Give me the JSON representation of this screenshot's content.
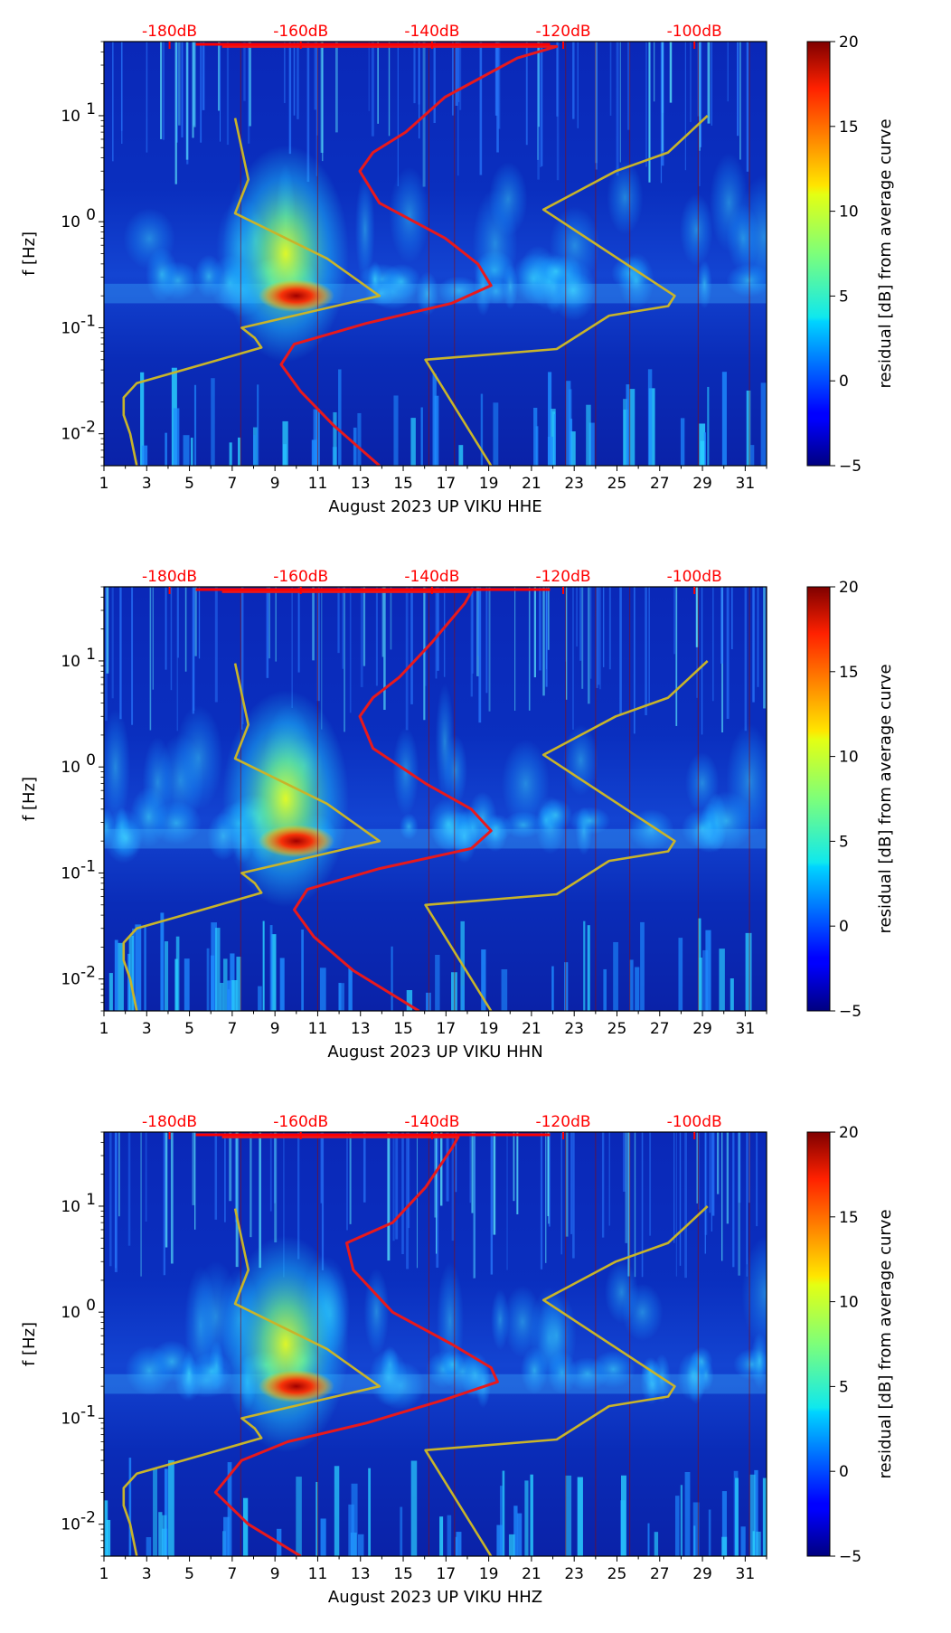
{
  "chart_data": [
    {
      "type": "heatmap",
      "channel": "HHE",
      "xlabel": "August 2023 UP VIKU  HHE",
      "ylabel": "f [Hz]",
      "x_ticks": [
        "1",
        "3",
        "5",
        "7",
        "9",
        "11",
        "13",
        "15",
        "17",
        "19",
        "21",
        "23",
        "25",
        "27",
        "29",
        "31"
      ],
      "xlim": [
        1,
        32
      ],
      "ylim": [
        0.005,
        50
      ],
      "y_ticks": [
        {
          "label": "10",
          "exp": "-2",
          "value": 0.01
        },
        {
          "label": "10",
          "exp": "-1",
          "value": 0.1
        },
        {
          "label": "10",
          "exp": "0",
          "value": 1
        },
        {
          "label": "10",
          "exp": "1",
          "value": 10
        }
      ],
      "top_axis_ticks": [
        "-180dB",
        "-160dB",
        "-140dB",
        "-120dB",
        "-100dB"
      ],
      "top_axis_range_db": [
        -190,
        -89
      ],
      "colorbar": {
        "label": "residual [dB] from average curve",
        "min": -5,
        "max": 20,
        "ticks": [
          "−5",
          "0",
          "5",
          "10",
          "15",
          "20"
        ]
      },
      "series": [
        {
          "name": "median PSD (dB)",
          "color": "#e8191c",
          "points": [
            [
              -148,
              0.005
            ],
            [
              -155,
              0.012
            ],
            [
              -160,
              0.025
            ],
            [
              -163,
              0.045
            ],
            [
              -161,
              0.07
            ],
            [
              -150,
              0.11
            ],
            [
              -137,
              0.17
            ],
            [
              -131,
              0.25
            ],
            [
              -133,
              0.4
            ],
            [
              -138,
              0.7
            ],
            [
              -148,
              1.5
            ],
            [
              -151,
              3
            ],
            [
              -149,
              4.5
            ],
            [
              -144,
              7
            ],
            [
              -138,
              15
            ],
            [
              -127,
              35
            ],
            [
              -121,
              45
            ],
            [
              -172,
              45
            ]
          ]
        },
        {
          "name": "NLNM (dB)",
          "color": "#c8b42a",
          "points": [
            [
              -185,
              0.005
            ],
            [
              -186,
              0.01
            ],
            [
              -187,
              0.015
            ],
            [
              -187,
              0.022
            ],
            [
              -185,
              0.03
            ],
            [
              -175,
              0.045
            ],
            [
              -166,
              0.065
            ],
            [
              -167,
              0.08
            ],
            [
              -169,
              0.1
            ],
            [
              -148,
              0.2
            ],
            [
              -156,
              0.45
            ],
            [
              -170,
              1.2
            ],
            [
              -168,
              2.5
            ],
            [
              -170,
              9.5
            ]
          ]
        },
        {
          "name": "NHNM (dB)",
          "color": "#c8b42a",
          "points": [
            [
              -131,
              0.005
            ],
            [
              -141,
              0.05
            ],
            [
              -121,
              0.063
            ],
            [
              -113,
              0.13
            ],
            [
              -104,
              0.16
            ],
            [
              -103,
              0.2
            ],
            [
              -123,
              1.3
            ],
            [
              -112,
              3
            ],
            [
              -104,
              4.5
            ],
            [
              -98,
              10
            ]
          ]
        }
      ]
    },
    {
      "type": "heatmap",
      "channel": "HHN",
      "xlabel": "August 2023 UP VIKU  HHN",
      "ylabel": "f [Hz]",
      "x_ticks": [
        "1",
        "3",
        "5",
        "7",
        "9",
        "11",
        "13",
        "15",
        "17",
        "19",
        "21",
        "23",
        "25",
        "27",
        "29",
        "31"
      ],
      "xlim": [
        1,
        32
      ],
      "ylim": [
        0.005,
        50
      ],
      "y_ticks": [
        {
          "label": "10",
          "exp": "-2",
          "value": 0.01
        },
        {
          "label": "10",
          "exp": "-1",
          "value": 0.1
        },
        {
          "label": "10",
          "exp": "0",
          "value": 1
        },
        {
          "label": "10",
          "exp": "1",
          "value": 10
        }
      ],
      "top_axis_ticks": [
        "-180dB",
        "-160dB",
        "-140dB",
        "-120dB",
        "-100dB"
      ],
      "top_axis_range_db": [
        -190,
        -89
      ],
      "colorbar": {
        "label": "residual [dB] from average curve",
        "min": -5,
        "max": 20,
        "ticks": [
          "−5",
          "0",
          "5",
          "10",
          "15",
          "20"
        ]
      },
      "series": [
        {
          "name": "median PSD (dB)",
          "color": "#e8191c",
          "points": [
            [
              -142,
              0.005
            ],
            [
              -152,
              0.012
            ],
            [
              -158,
              0.025
            ],
            [
              -161,
              0.045
            ],
            [
              -159,
              0.07
            ],
            [
              -148,
              0.11
            ],
            [
              -134,
              0.17
            ],
            [
              -131,
              0.25
            ],
            [
              -134,
              0.4
            ],
            [
              -141,
              0.7
            ],
            [
              -149,
              1.5
            ],
            [
              -151,
              3
            ],
            [
              -149,
              4.5
            ],
            [
              -145,
              7
            ],
            [
              -140,
              15
            ],
            [
              -135,
              35
            ],
            [
              -134,
              45
            ],
            [
              -172,
              45
            ]
          ]
        },
        {
          "name": "NLNM (dB)",
          "color": "#c8b42a",
          "points": [
            [
              -185,
              0.005
            ],
            [
              -186,
              0.01
            ],
            [
              -187,
              0.015
            ],
            [
              -187,
              0.022
            ],
            [
              -185,
              0.03
            ],
            [
              -175,
              0.045
            ],
            [
              -166,
              0.065
            ],
            [
              -167,
              0.08
            ],
            [
              -169,
              0.1
            ],
            [
              -148,
              0.2
            ],
            [
              -156,
              0.45
            ],
            [
              -170,
              1.2
            ],
            [
              -168,
              2.5
            ],
            [
              -170,
              9.5
            ]
          ]
        },
        {
          "name": "NHNM (dB)",
          "color": "#c8b42a",
          "points": [
            [
              -131,
              0.005
            ],
            [
              -141,
              0.05
            ],
            [
              -121,
              0.063
            ],
            [
              -113,
              0.13
            ],
            [
              -104,
              0.16
            ],
            [
              -103,
              0.2
            ],
            [
              -123,
              1.3
            ],
            [
              -112,
              3
            ],
            [
              -104,
              4.5
            ],
            [
              -98,
              10
            ]
          ]
        }
      ]
    },
    {
      "type": "heatmap",
      "channel": "HHZ",
      "xlabel": "August 2023 UP VIKU  HHZ",
      "ylabel": "f [Hz]",
      "x_ticks": [
        "1",
        "3",
        "5",
        "7",
        "9",
        "11",
        "13",
        "15",
        "17",
        "19",
        "21",
        "23",
        "25",
        "27",
        "29",
        "31"
      ],
      "xlim": [
        1,
        32
      ],
      "ylim": [
        0.005,
        50
      ],
      "y_ticks": [
        {
          "label": "10",
          "exp": "-2",
          "value": 0.01
        },
        {
          "label": "10",
          "exp": "-1",
          "value": 0.1
        },
        {
          "label": "10",
          "exp": "0",
          "value": 1
        },
        {
          "label": "10",
          "exp": "1",
          "value": 10
        }
      ],
      "top_axis_ticks": [
        "-180dB",
        "-160dB",
        "-140dB",
        "-120dB",
        "-100dB"
      ],
      "top_axis_range_db": [
        -190,
        -89
      ],
      "colorbar": {
        "label": "residual [dB] from average curve",
        "min": -5,
        "max": 20,
        "ticks": [
          "−5",
          "0",
          "5",
          "10",
          "15",
          "20"
        ]
      },
      "series": [
        {
          "name": "median PSD (dB)",
          "color": "#e8191c",
          "points": [
            [
              -160,
              0.005
            ],
            [
              -168,
              0.01
            ],
            [
              -173,
              0.02
            ],
            [
              -169,
              0.04
            ],
            [
              -162,
              0.06
            ],
            [
              -150,
              0.09
            ],
            [
              -138,
              0.15
            ],
            [
              -130,
              0.22
            ],
            [
              -131,
              0.3
            ],
            [
              -137,
              0.5
            ],
            [
              -146,
              1
            ],
            [
              -152,
              2.5
            ],
            [
              -153,
              4.5
            ],
            [
              -146,
              7
            ],
            [
              -141,
              15
            ],
            [
              -137,
              35
            ],
            [
              -136,
              45
            ],
            [
              -172,
              45
            ]
          ]
        },
        {
          "name": "NLNM (dB)",
          "color": "#c8b42a",
          "points": [
            [
              -185,
              0.005
            ],
            [
              -186,
              0.01
            ],
            [
              -187,
              0.015
            ],
            [
              -187,
              0.022
            ],
            [
              -185,
              0.03
            ],
            [
              -175,
              0.045
            ],
            [
              -166,
              0.065
            ],
            [
              -167,
              0.08
            ],
            [
              -169,
              0.1
            ],
            [
              -148,
              0.2
            ],
            [
              -156,
              0.45
            ],
            [
              -170,
              1.2
            ],
            [
              -168,
              2.5
            ],
            [
              -170,
              9.5
            ]
          ]
        },
        {
          "name": "NHNM (dB)",
          "color": "#c8b42a",
          "points": [
            [
              -131,
              0.005
            ],
            [
              -141,
              0.05
            ],
            [
              -121,
              0.063
            ],
            [
              -113,
              0.13
            ],
            [
              -104,
              0.16
            ],
            [
              -103,
              0.2
            ],
            [
              -123,
              1.3
            ],
            [
              -112,
              3
            ],
            [
              -104,
              4.5
            ],
            [
              -98,
              10
            ]
          ]
        }
      ]
    }
  ]
}
